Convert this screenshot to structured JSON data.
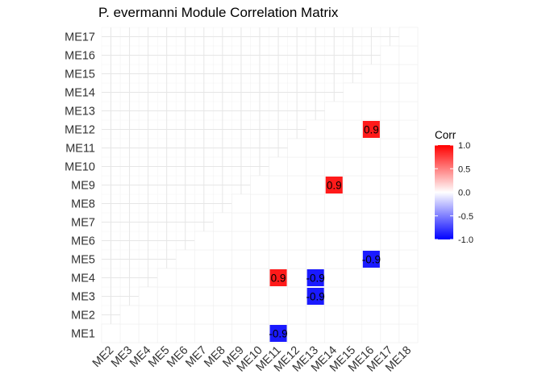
{
  "chart_data": {
    "type": "heatmap",
    "title": "P. evermanni Module Correlation Matrix",
    "x_categories": [
      "ME2",
      "ME3",
      "ME4",
      "ME5",
      "ME6",
      "ME7",
      "ME8",
      "ME9",
      "ME10",
      "ME11",
      "ME12",
      "ME13",
      "ME14",
      "ME15",
      "ME16",
      "ME17",
      "ME18"
    ],
    "y_categories": [
      "ME1",
      "ME2",
      "ME3",
      "ME4",
      "ME5",
      "ME6",
      "ME7",
      "ME8",
      "ME9",
      "ME10",
      "ME11",
      "ME12",
      "ME13",
      "ME14",
      "ME15",
      "ME16",
      "ME17"
    ],
    "layout": "lower-triangle",
    "significant_cells": [
      {
        "x": "ME11",
        "y": "ME1",
        "value": -0.9,
        "label": "-0.9"
      },
      {
        "x": "ME13",
        "y": "ME3",
        "value": -0.9,
        "label": "-0.9"
      },
      {
        "x": "ME13",
        "y": "ME4",
        "value": -0.9,
        "label": "-0.9"
      },
      {
        "x": "ME11",
        "y": "ME4",
        "value": 0.9,
        "label": "0.9"
      },
      {
        "x": "ME16",
        "y": "ME5",
        "value": -0.9,
        "label": "-0.9"
      },
      {
        "x": "ME14",
        "y": "ME9",
        "value": 0.9,
        "label": "0.9"
      },
      {
        "x": "ME16",
        "y": "ME12",
        "value": 0.9,
        "label": "0.9"
      }
    ],
    "legend": {
      "title": "Corr",
      "ticks": [
        "1.0",
        "0.5",
        "0.0",
        "-0.5",
        "-1.0"
      ],
      "tick_values": [
        1.0,
        0.5,
        0.0,
        -0.5,
        -1.0
      ],
      "range": [
        -1.0,
        1.0
      ],
      "colors": {
        "low": "#0000FF",
        "mid": "#FFFFFF",
        "high": "#FF0000"
      },
      "placement": "right"
    },
    "grid": true
  }
}
